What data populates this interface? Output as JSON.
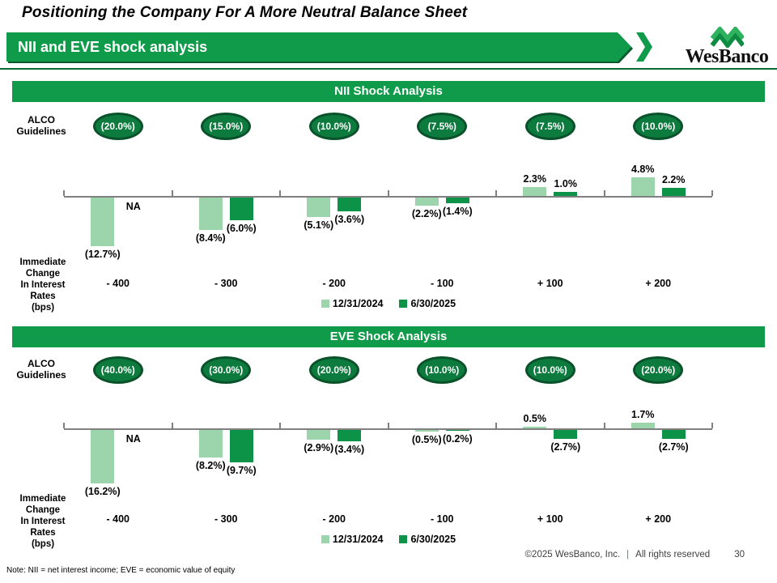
{
  "slide": {
    "title": "Positioning the Company For A More Neutral Balance Sheet",
    "banner_title": "NII and EVE shock analysis",
    "logo_text": "WesBanco",
    "footer": {
      "copyright": "©2025 WesBanco, Inc.",
      "separator": "|",
      "rights": "All rights reserved",
      "page_number": "30"
    },
    "note": "Note: NII = net interest income; EVE = economic value of equity"
  },
  "colors": {
    "brand_green": "#0f9b49",
    "oval_fill": "#0d7a3e",
    "oval_border": "#09522a",
    "series_light": "#9cd4ab",
    "series_dark": "#0d9347",
    "axis_gray": "#808080"
  },
  "chart_data": [
    {
      "id": "nii",
      "type": "bar",
      "title": "NII Shock Analysis",
      "alco_label": "ALCO\nGuidelines",
      "alco_guidelines": [
        "(20.0%)",
        "(15.0%)",
        "(10.0%)",
        "(7.5%)",
        "(7.5%)",
        "(10.0%)"
      ],
      "categories": [
        "- 400",
        "- 300",
        "- 200",
        "- 100",
        "+ 100",
        "+ 200"
      ],
      "x_axis_label": "Immediate\nChange\nIn Interest\nRates\n(bps)",
      "unit": "percent",
      "legend_position": "bottom",
      "series": [
        {
          "name": "12/31/2024",
          "values": [
            -12.7,
            -8.4,
            -5.1,
            -2.2,
            2.3,
            4.8
          ],
          "labels": [
            "(12.7%)",
            "(8.4%)",
            "(5.1%)",
            "(2.2%)",
            "2.3%",
            "4.8%"
          ]
        },
        {
          "name": "6/30/2025",
          "values": [
            null,
            -6.0,
            -3.6,
            -1.4,
            1.0,
            2.2
          ],
          "labels": [
            "NA",
            "(6.0%)",
            "(3.6%)",
            "(1.4%)",
            "1.0%",
            "2.2%"
          ]
        }
      ]
    },
    {
      "id": "eve",
      "type": "bar",
      "title": "EVE Shock Analysis",
      "alco_label": "ALCO\nGuidelines",
      "alco_guidelines": [
        "(40.0%)",
        "(30.0%)",
        "(20.0%)",
        "(10.0%)",
        "(10.0%)",
        "(20.0%)"
      ],
      "categories": [
        "- 400",
        "- 300",
        "- 200",
        "- 100",
        "+ 100",
        "+ 200"
      ],
      "x_axis_label": "Immediate\nChange\nIn Interest\nRates\n(bps)",
      "unit": "percent",
      "legend_position": "bottom",
      "series": [
        {
          "name": "12/31/2024",
          "values": [
            -16.2,
            -8.2,
            -2.9,
            -0.5,
            0.5,
            1.7
          ],
          "labels": [
            "(16.2%)",
            "(8.2%)",
            "(2.9%)",
            "(0.5%)",
            "0.5%",
            "1.7%"
          ]
        },
        {
          "name": "6/30/2025",
          "values": [
            null,
            -9.7,
            -3.4,
            -0.2,
            -2.7,
            -2.7
          ],
          "labels": [
            "NA",
            "(9.7%)",
            "(3.4%)",
            "(0.2%)",
            "(2.7%)",
            "(2.7%)"
          ]
        }
      ]
    }
  ]
}
